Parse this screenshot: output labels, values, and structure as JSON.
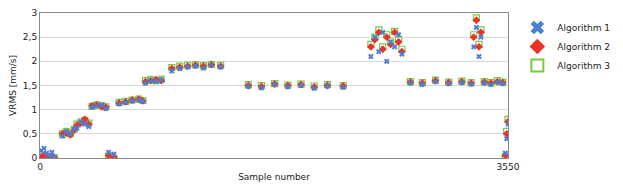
{
  "chart_data": {
    "type": "scatter",
    "x_label": "Sample number",
    "y_label": "VRMS [mm/s]",
    "x": [
      10,
      30,
      50,
      70,
      90,
      110,
      170,
      200,
      230,
      260,
      280,
      310,
      340,
      370,
      395,
      430,
      470,
      500,
      520,
      560,
      600,
      650,
      700,
      750,
      780,
      800,
      840,
      880,
      920,
      1000,
      1060,
      1120,
      1180,
      1240,
      1300,
      1370,
      1580,
      1680,
      1780,
      1880,
      1980,
      2080,
      2180,
      2300,
      2510,
      2540,
      2570,
      2600,
      2630,
      2660,
      2690,
      2720,
      2745,
      2810,
      2900,
      3000,
      3100,
      3200,
      3270,
      3290,
      3310,
      3330,
      3345,
      3370,
      3420,
      3470,
      3510,
      3530,
      3540,
      3550
    ],
    "series": [
      {
        "name": "Algorithm 1",
        "color": "#4a7fd8",
        "marker": "x",
        "values": [
          0.15,
          0.2,
          0.1,
          0.05,
          0.12,
          0.02,
          0.45,
          0.55,
          0.5,
          0.6,
          0.62,
          0.75,
          0.7,
          0.65,
          1.05,
          1.08,
          1.1,
          1.02,
          0.12,
          0.08,
          1.12,
          1.15,
          1.18,
          1.2,
          1.17,
          1.55,
          1.6,
          1.58,
          1.62,
          1.8,
          1.85,
          1.88,
          1.9,
          1.86,
          1.92,
          1.88,
          1.48,
          1.45,
          1.52,
          1.47,
          1.5,
          1.44,
          1.49,
          1.46,
          2.1,
          2.5,
          2.2,
          2.6,
          2.0,
          2.4,
          2.3,
          2.55,
          2.15,
          1.55,
          1.52,
          1.58,
          1.54,
          1.56,
          1.53,
          2.3,
          2.7,
          2.1,
          2.5,
          1.55,
          1.52,
          1.57,
          1.54,
          0.1,
          0.4,
          0.7
        ]
      },
      {
        "name": "Algorithm 2",
        "color": "#e8322a",
        "marker": "diamond",
        "values": [
          0.02,
          0.05,
          0.0,
          0.03,
          0.01,
          0.0,
          0.5,
          0.52,
          0.48,
          0.58,
          0.68,
          0.72,
          0.8,
          0.7,
          1.08,
          1.1,
          1.06,
          1.05,
          0.05,
          0.02,
          1.14,
          1.16,
          1.2,
          1.22,
          1.18,
          1.58,
          1.6,
          1.62,
          1.6,
          1.85,
          1.88,
          1.9,
          1.92,
          1.9,
          1.93,
          1.9,
          1.5,
          1.48,
          1.53,
          1.5,
          1.52,
          1.47,
          1.5,
          1.49,
          2.3,
          2.45,
          2.6,
          2.25,
          2.5,
          2.35,
          2.6,
          2.4,
          2.2,
          1.57,
          1.55,
          1.6,
          1.56,
          1.58,
          1.55,
          2.5,
          2.85,
          2.3,
          2.6,
          1.57,
          1.55,
          1.58,
          1.56,
          0.05,
          0.5,
          0.75
        ]
      },
      {
        "name": "Algorithm 3",
        "color": "#7ac943",
        "marker": "square-open",
        "values": [
          0.0,
          0.02,
          0.0,
          0.01,
          0.0,
          0.0,
          0.5,
          0.55,
          0.5,
          0.6,
          0.7,
          0.75,
          0.78,
          0.72,
          1.07,
          1.1,
          1.08,
          1.06,
          0.04,
          0.0,
          1.15,
          1.17,
          1.2,
          1.22,
          1.19,
          1.6,
          1.62,
          1.6,
          1.63,
          1.87,
          1.9,
          1.92,
          1.93,
          1.91,
          1.94,
          1.92,
          1.52,
          1.5,
          1.54,
          1.51,
          1.53,
          1.49,
          1.52,
          1.5,
          2.35,
          2.5,
          2.65,
          2.3,
          2.55,
          2.4,
          2.62,
          2.45,
          2.25,
          1.58,
          1.56,
          1.61,
          1.57,
          1.59,
          1.56,
          2.55,
          2.9,
          2.35,
          2.65,
          1.58,
          1.56,
          1.6,
          1.57,
          0.03,
          0.55,
          0.8
        ]
      }
    ],
    "xlim": [
      0,
      3550
    ],
    "xticks": [
      0,
      3550
    ],
    "ylim": [
      0,
      3
    ],
    "yticks": [
      0,
      {
        "value": 0.5,
        "label": "0,5"
      },
      1,
      {
        "value": 1.5,
        "label": "1,5"
      },
      2,
      {
        "value": 2.5,
        "label": "2,5"
      },
      3
    ],
    "grid": true,
    "legend": "right"
  }
}
